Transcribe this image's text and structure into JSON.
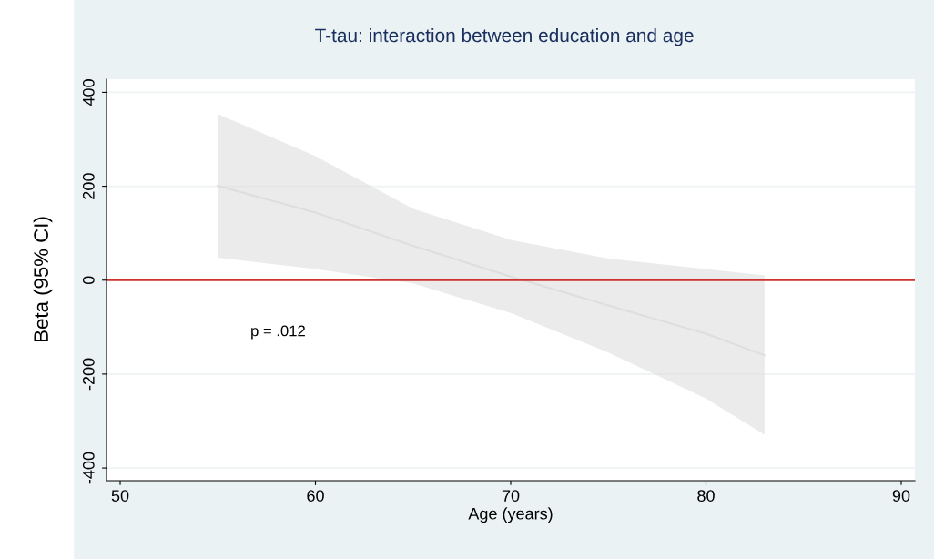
{
  "chart_data": {
    "type": "line",
    "title": "T-tau: interaction between education and age",
    "xlabel": "Age (years)",
    "ylabel": "Beta (95% CI)",
    "series": [
      {
        "color": "#dedede",
        "x": [
          55,
          60,
          65,
          70,
          75,
          80,
          83
        ],
        "values": [
          201,
          144,
          73,
          8,
          -54,
          -114,
          -160
        ],
        "lower": [
          48,
          24,
          -7,
          -70,
          -154,
          -252,
          -329
        ],
        "upper": [
          354,
          264,
          152,
          86,
          46,
          24,
          10
        ]
      }
    ],
    "xlim": [
      49.3,
      90.7
    ],
    "xticks": [
      50,
      60,
      70,
      80,
      90
    ],
    "ylim": [
      -427,
      428
    ],
    "yticks": [
      -400,
      -200,
      0,
      200,
      400
    ],
    "grid": "y",
    "ref_lines": [
      {
        "axis": "y",
        "value": 0,
        "color": "#d0302f"
      }
    ],
    "annotations": [
      "p = .012"
    ]
  }
}
